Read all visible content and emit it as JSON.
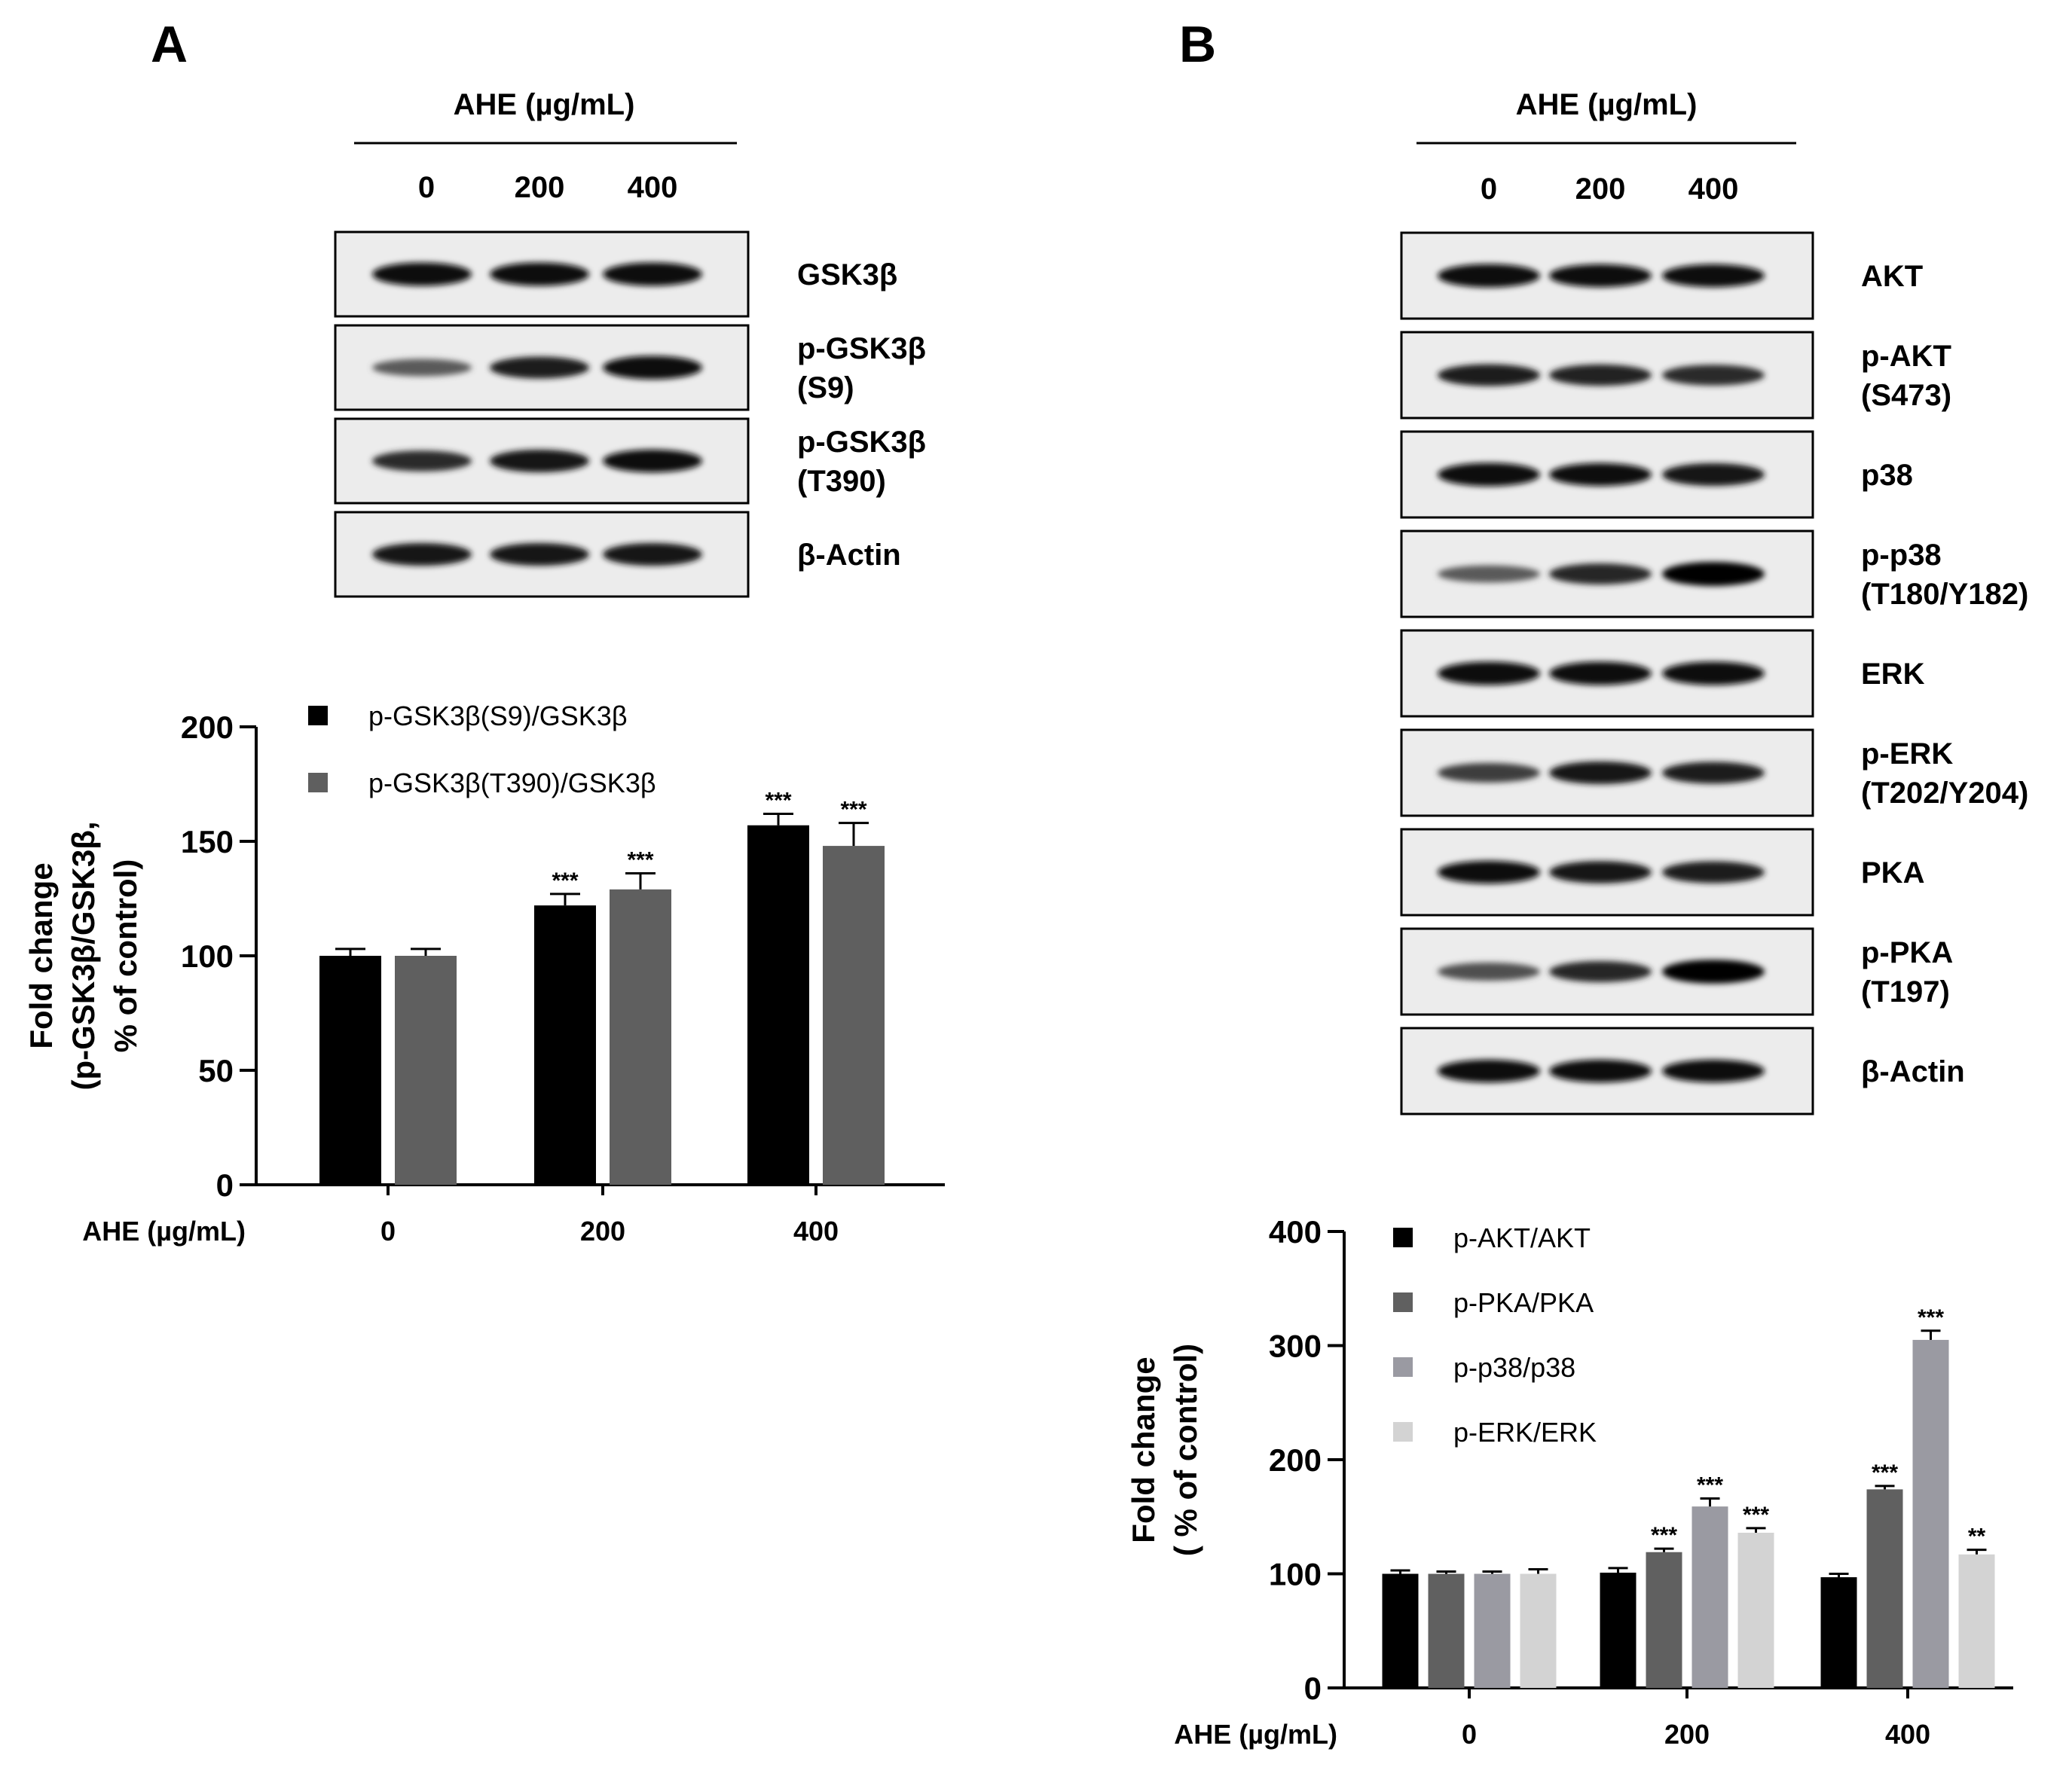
{
  "panel_a": {
    "letter": "A",
    "treatment_label": "AHE (µg/mL)",
    "lanes": [
      "0",
      "200",
      "400"
    ],
    "blots": [
      {
        "label": [
          "GSK3β"
        ],
        "intensities": [
          0.95,
          0.95,
          0.95
        ]
      },
      {
        "label": [
          "p-GSK3β",
          "(S9)"
        ],
        "intensities": [
          0.55,
          0.85,
          0.95
        ]
      },
      {
        "label": [
          "p-GSK3β",
          "(T390)"
        ],
        "intensities": [
          0.78,
          0.9,
          0.92
        ]
      },
      {
        "label": [
          "β-Actin"
        ],
        "intensities": [
          0.9,
          0.9,
          0.9
        ]
      }
    ]
  },
  "panel_b": {
    "letter": "B",
    "treatment_label": "AHE (µg/mL)",
    "lanes": [
      "0",
      "200",
      "400"
    ],
    "blots": [
      {
        "label": [
          "AKT"
        ],
        "intensities": [
          0.95,
          0.92,
          0.92
        ]
      },
      {
        "label": [
          "p-AKT",
          "(S473)"
        ],
        "intensities": [
          0.85,
          0.82,
          0.78
        ]
      },
      {
        "label": [
          "p38"
        ],
        "intensities": [
          0.95,
          0.92,
          0.9
        ]
      },
      {
        "label": [
          "p-p38",
          "(T180/Y182)"
        ],
        "intensities": [
          0.55,
          0.8,
          1.0
        ]
      },
      {
        "label": [
          "ERK"
        ],
        "intensities": [
          0.95,
          0.95,
          0.95
        ]
      },
      {
        "label": [
          "p-ERK",
          "(T202/Y204)"
        ],
        "intensities": [
          0.7,
          0.9,
          0.85
        ]
      },
      {
        "label": [
          "PKA"
        ],
        "intensities": [
          0.92,
          0.88,
          0.85
        ]
      },
      {
        "label": [
          "p-PKA",
          "(T197)"
        ],
        "intensities": [
          0.6,
          0.8,
          0.98
        ]
      },
      {
        "label": [
          "β-Actin"
        ],
        "intensities": [
          0.92,
          0.92,
          0.92
        ]
      }
    ]
  },
  "chart_data": [
    {
      "type": "bar",
      "panel": "A",
      "categories": [
        "0",
        "200",
        "400"
      ],
      "xlabel": "AHE (µg/mL)",
      "ylabel": [
        "Fold change",
        "(p-GSK3β/GSK3β,",
        "% of control)"
      ],
      "ylim": [
        0,
        200
      ],
      "yticks": [
        "0",
        "50",
        "100",
        "150",
        "200"
      ],
      "legend_position": "top-left",
      "series": [
        {
          "name": "p-GSK3β(S9)/GSK3β",
          "color": "#000000",
          "values": [
            100,
            122,
            157
          ],
          "errors": [
            3,
            5,
            5
          ],
          "significance": [
            "",
            "***",
            "***"
          ]
        },
        {
          "name": "p-GSK3β(T390)/GSK3β",
          "color": "#5f5f5f",
          "values": [
            100,
            129,
            148
          ],
          "errors": [
            3,
            7,
            10
          ],
          "significance": [
            "",
            "***",
            "***"
          ]
        }
      ]
    },
    {
      "type": "bar",
      "panel": "B",
      "categories": [
        "0",
        "200",
        "400"
      ],
      "xlabel": "AHE (µg/mL)",
      "ylabel": [
        "Fold change",
        "( % of control)"
      ],
      "ylim": [
        0,
        400
      ],
      "yticks": [
        "0",
        "100",
        "200",
        "300",
        "400"
      ],
      "legend_position": "top-left",
      "series": [
        {
          "name": "p-AKT/AKT",
          "color": "#000000",
          "values": [
            100,
            101,
            97
          ],
          "errors": [
            3,
            4,
            3
          ],
          "significance": [
            "",
            "",
            ""
          ]
        },
        {
          "name": "p-PKA/PKA",
          "color": "#606060",
          "values": [
            100,
            119,
            174
          ],
          "errors": [
            2,
            3,
            3
          ],
          "significance": [
            "",
            "***",
            "***"
          ]
        },
        {
          "name": "p-p38/p38",
          "color": "#9a9aa2",
          "values": [
            100,
            159,
            305
          ],
          "errors": [
            2,
            7,
            8
          ],
          "significance": [
            "",
            "***",
            "***"
          ]
        },
        {
          "name": "p-ERK/ERK",
          "color": "#d3d3d3",
          "values": [
            100,
            136,
            117
          ],
          "errors": [
            4,
            4,
            4
          ],
          "significance": [
            "",
            "***",
            "**"
          ]
        }
      ]
    }
  ]
}
